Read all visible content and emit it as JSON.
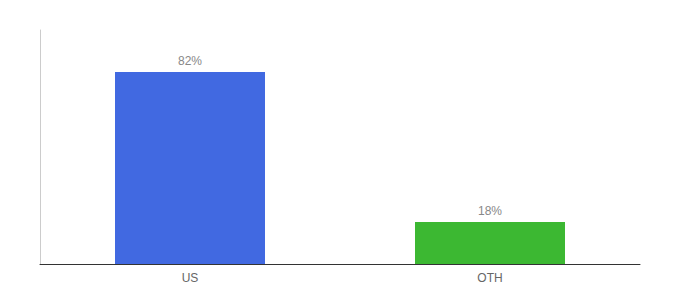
{
  "chart_data": {
    "type": "bar",
    "categories": [
      "US",
      "OTH"
    ],
    "values": [
      82,
      18
    ],
    "value_labels": [
      "82%",
      "18%"
    ],
    "data_labels": true,
    "colors": [
      "#4169e1",
      "#3cb832"
    ],
    "ylim": [
      0,
      100
    ],
    "grid": false,
    "tick_labels": "x"
  }
}
